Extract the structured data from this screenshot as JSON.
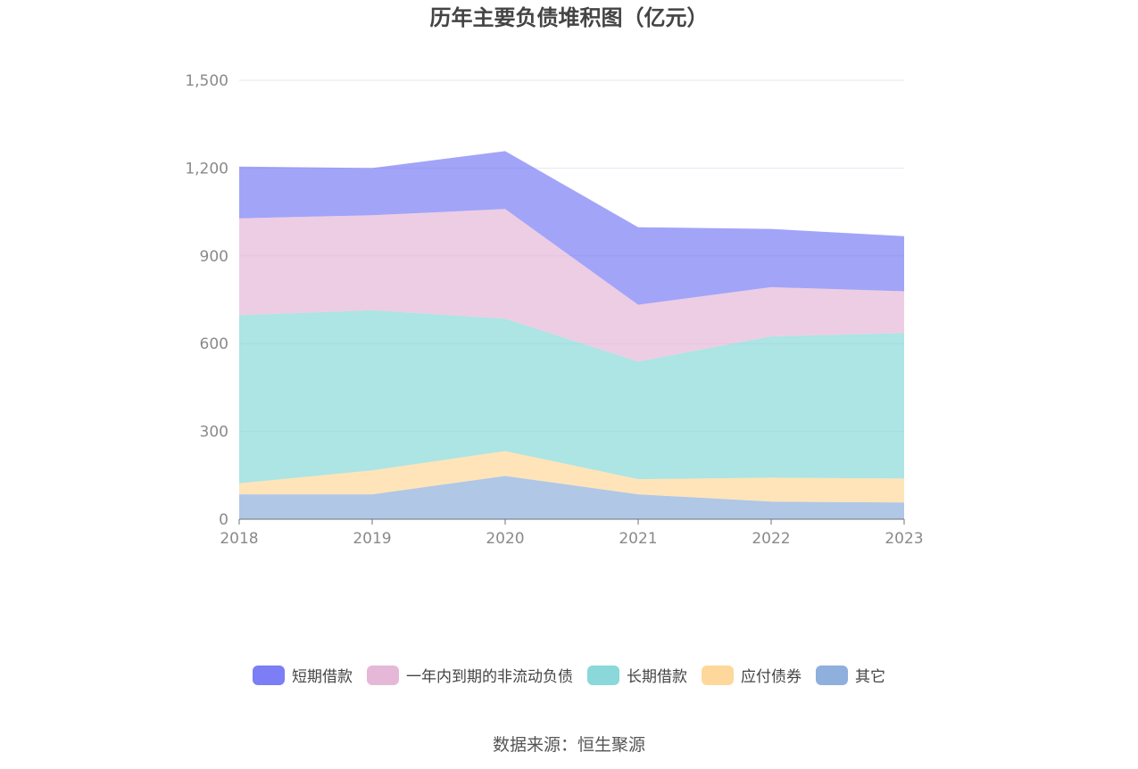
{
  "chart_data": {
    "type": "area",
    "stacked": true,
    "title": "历年主要负债堆积图（亿元）",
    "x": [
      "2018",
      "2019",
      "2020",
      "2021",
      "2022",
      "2023"
    ],
    "ylim": [
      0,
      1500
    ],
    "yticks": [
      "0",
      "300",
      "600",
      "900",
      "1,200",
      "1,500"
    ],
    "ytick_values": [
      0,
      300,
      600,
      900,
      1200,
      1500
    ],
    "grid": true,
    "legend_position": "bottom",
    "series": [
      {
        "name": "其它",
        "color": "#8fafdc",
        "values": [
          85,
          85,
          148,
          85,
          60,
          57
        ]
      },
      {
        "name": "应付债券",
        "color": "#fdd89a",
        "values": [
          38,
          82,
          85,
          52,
          82,
          82
        ]
      },
      {
        "name": "长期借款",
        "color": "#8ad8d9",
        "values": [
          574,
          547,
          452,
          402,
          483,
          497
        ]
      },
      {
        "name": "一年内到期的非流动负债",
        "color": "#e6b8d8",
        "values": [
          331,
          325,
          375,
          194,
          168,
          143
        ]
      },
      {
        "name": "短期借款",
        "color": "#7b7ef5",
        "values": [
          177,
          161,
          198,
          265,
          199,
          188
        ]
      }
    ],
    "legend_order": [
      "短期借款",
      "一年内到期的非流动负债",
      "长期借款",
      "应付债券",
      "其它"
    ]
  },
  "source": "数据来源：恒生聚源"
}
